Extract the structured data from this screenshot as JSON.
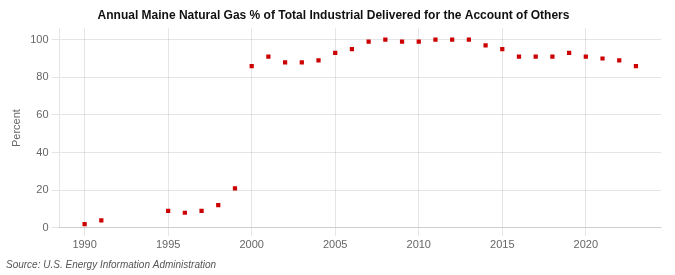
{
  "chart_data": {
    "type": "scatter",
    "title": "Annual Maine Natural Gas % of Total Industrial Delivered for the Account of Others",
    "ylabel": "Percent",
    "source": "Source: U.S. Energy Information Administration",
    "x": [
      1990,
      1991,
      1995,
      1996,
      1997,
      1998,
      1999,
      2000,
      2001,
      2002,
      2003,
      2004,
      2005,
      2006,
      2007,
      2008,
      2009,
      2010,
      2011,
      2012,
      2013,
      2014,
      2015,
      2016,
      2017,
      2018,
      2019,
      2020,
      2021,
      2022,
      2023
    ],
    "values": [
      2,
      4,
      9,
      8,
      9,
      12,
      21,
      86,
      91,
      88,
      88,
      89,
      93,
      95,
      99,
      100,
      99,
      99,
      100,
      100,
      100,
      97,
      95,
      91,
      91,
      91,
      93,
      91,
      90,
      89,
      86
    ],
    "color": "#cc0000",
    "marker": "square",
    "xlim": [
      1988.5,
      2024.5
    ],
    "ylim": [
      0,
      106
    ],
    "xticks": [
      1990,
      1995,
      2000,
      2005,
      2010,
      2015,
      2020
    ],
    "yticks": [
      0,
      20,
      40,
      60,
      80,
      100
    ],
    "grid": true
  }
}
